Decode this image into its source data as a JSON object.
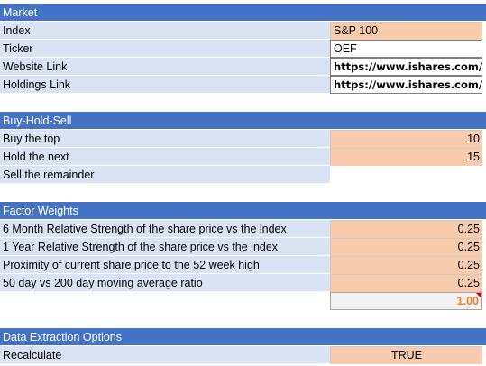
{
  "market": {
    "header": "Market",
    "rows": [
      {
        "label": "Index",
        "value": "S&P 100"
      },
      {
        "label": "Ticker",
        "value": "OEF"
      },
      {
        "label": "Website Link",
        "value": "https://www.ishares.com/"
      },
      {
        "label": "Holdings Link",
        "value": "https://www.ishares.com/"
      }
    ]
  },
  "buy_hold_sell": {
    "header": "Buy-Hold-Sell",
    "rows": [
      {
        "label": "Buy the top",
        "value": "10"
      },
      {
        "label": "Hold the next",
        "value": "15"
      },
      {
        "label": "Sell the remainder",
        "value": ""
      }
    ]
  },
  "factor_weights": {
    "header": "Factor Weights",
    "rows": [
      {
        "label": "6 Month Relative Strength of the share price vs the index",
        "value": "0.25"
      },
      {
        "label": "1 Year Relative Strength of the share price vs the index",
        "value": "0.25"
      },
      {
        "label": "Proximity of current share price to the 52 week high",
        "value": "0.25"
      },
      {
        "label": "50 day vs 200 day moving average ratio",
        "value": "0.25"
      }
    ],
    "total": "1.00"
  },
  "data_extraction": {
    "header": "Data Extraction Options",
    "rows": [
      {
        "label": "Recalculate",
        "value": "TRUE"
      }
    ]
  },
  "colors": {
    "header_bg": "#4472c4",
    "label_bg": "#dae3f3",
    "input_bg": "#f8cbad",
    "total_text": "#ed7d31",
    "comment_marker": "#c00000"
  }
}
